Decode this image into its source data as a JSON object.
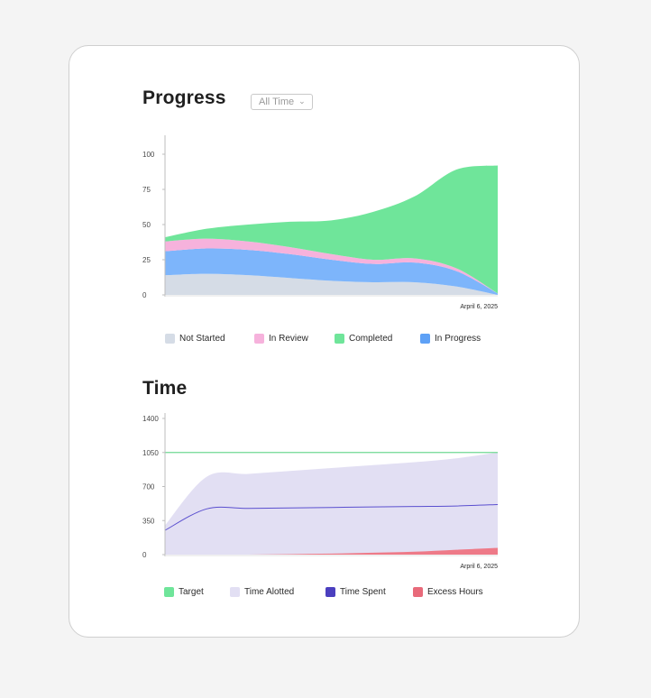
{
  "progress": {
    "title": "Progress",
    "filter": {
      "selected": "All Time"
    }
  },
  "time": {
    "title": "Time"
  },
  "chart_data": [
    {
      "type": "area",
      "stacked": true,
      "title": "Progress",
      "yticks": [
        "0",
        "25",
        "50",
        "75",
        "100"
      ],
      "ylim": [
        0,
        100
      ],
      "x_end_label": "Arpril 6, 2025",
      "x": [
        0,
        1,
        2,
        3,
        4,
        5,
        6,
        7,
        8
      ],
      "series": [
        {
          "name": "Not Started",
          "color": "#d5dce6",
          "values": [
            14,
            15,
            14,
            12,
            10,
            9,
            9,
            6,
            0
          ]
        },
        {
          "name": "In Progress",
          "color": "#7db5fb",
          "values": [
            17,
            18,
            18,
            17,
            15,
            13,
            14,
            11,
            1
          ]
        },
        {
          "name": "In Review",
          "color": "#f6b2dc",
          "values": [
            7,
            7,
            6,
            5,
            4,
            3,
            3,
            2,
            0
          ]
        },
        {
          "name": "Completed",
          "color": "#6fe59a",
          "values": [
            3,
            7,
            12,
            18,
            24,
            34,
            44,
            70,
            91
          ]
        }
      ],
      "legend": [
        {
          "name": "Not Started",
          "color": "#d5dce6"
        },
        {
          "name": "In Review",
          "color": "#f6b2dc"
        },
        {
          "name": "Completed",
          "color": "#6fe59a"
        },
        {
          "name": "In Progress",
          "color": "#5ea1f6"
        }
      ]
    },
    {
      "type": "area",
      "title": "Time",
      "yticks": [
        "0",
        "350",
        "700",
        "1050",
        "1400"
      ],
      "ylim": [
        0,
        1400
      ],
      "x_end_label": "Arpril 6, 2025",
      "x": [
        0,
        1,
        2,
        3,
        4,
        5,
        6,
        7,
        8
      ],
      "series": [
        {
          "name": "Time Alotted",
          "kind": "area",
          "color": "#e2dff3",
          "values": [
            300,
            800,
            830,
            860,
            890,
            920,
            950,
            990,
            1050
          ]
        },
        {
          "name": "Excess Hours",
          "kind": "area",
          "color": "#ee7a88",
          "values": [
            0,
            0,
            0,
            5,
            10,
            20,
            30,
            50,
            70
          ]
        },
        {
          "name": "Target",
          "kind": "line",
          "color": "#6fd892",
          "values": [
            1050,
            1050,
            1050,
            1050,
            1050,
            1050,
            1050,
            1050,
            1050
          ]
        },
        {
          "name": "Time Spent",
          "kind": "line",
          "color": "#5a4fcf",
          "values": [
            250,
            470,
            475,
            480,
            485,
            490,
            495,
            500,
            515
          ]
        }
      ],
      "legend": [
        {
          "name": "Target",
          "color": "#6fe59a"
        },
        {
          "name": "Time Alotted",
          "color": "#e2dff3"
        },
        {
          "name": "Time Spent",
          "color": "#4b3fbf"
        },
        {
          "name": "Excess Hours",
          "color": "#e86a7a"
        }
      ]
    }
  ]
}
